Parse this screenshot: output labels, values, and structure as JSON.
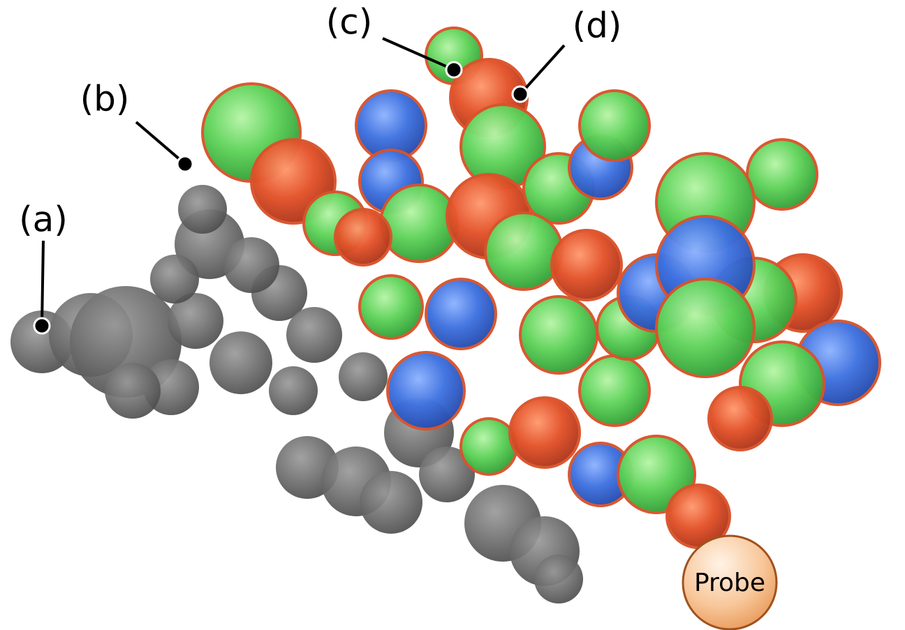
{
  "callouts": [
    "(a)",
    "(b)",
    "(c)",
    "(d)"
  ],
  "probe": "Probe"
}
